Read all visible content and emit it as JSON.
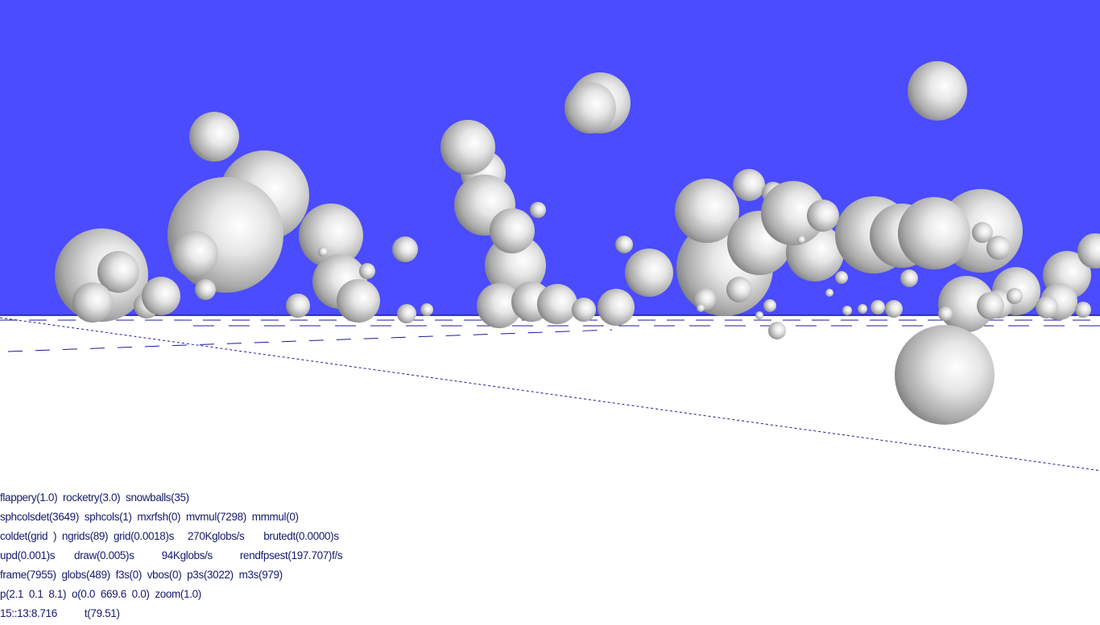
{
  "colors": {
    "sky": "#4b4bff",
    "ground": "#ffffff",
    "hud_text": "#141a6e",
    "horizon": "#1a1aa0"
  },
  "hud": {
    "line1": "flappery(1.0)  rocketry(3.0)  snowballs(35)",
    "line2": "sphcolsdet(3649)  sphcols(1)  mxrfsh(0)  mvmul(7298)  mmmul(0)",
    "line3": "coldet(grid  )  ngrids(89)  grid(0.0018)s     270Kglobs/s       brutedt(0.0000)s",
    "line4": "upd(0.001)s       draw(0.005)s          94Kglobs/s          rendfpsest(197.707)f/s",
    "line5": "frame(7955)  globs(489)  f3s(0)  vbos(0)  p3s(3022)  m3s(979)",
    "line6": "p(2.1  0.1  8.1)  o(0.0  669.6  0.0)  zoom(1.0)",
    "line7": "15::13:8.716          t(79.51)"
  }
}
